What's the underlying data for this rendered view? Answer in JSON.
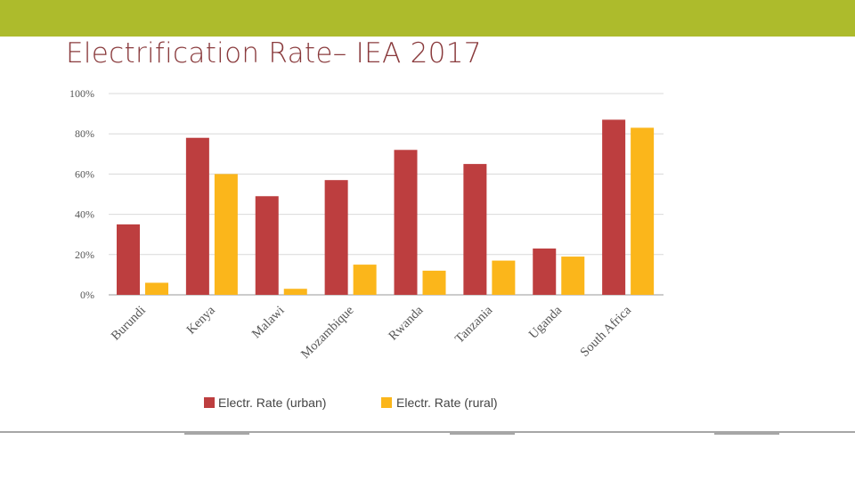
{
  "slide": {
    "title": "Electrification Rate– IEA 2017",
    "band_color": "#adbb2c",
    "title_color": "#8a3b3d"
  },
  "chart_data": {
    "type": "bar",
    "title": "",
    "xlabel": "",
    "ylabel": "",
    "categories": [
      "Burundi",
      "Kenya",
      "Malawi",
      "Mozambique",
      "Rwanda",
      "Tanzania",
      "Uganda",
      "South Africa"
    ],
    "series": [
      {
        "name": "Electr. Rate (urban)",
        "color": "#bd3e3f",
        "values": [
          35,
          78,
          49,
          57,
          72,
          65,
          23,
          87
        ]
      },
      {
        "name": "Electr. Rate (rural)",
        "color": "#fbb61b",
        "values": [
          6,
          60,
          3,
          15,
          12,
          17,
          19,
          83
        ]
      }
    ],
    "yticks": [
      "0%",
      "20%",
      "40%",
      "60%",
      "80%",
      "100%"
    ],
    "ylim": [
      0,
      100
    ],
    "grid": true,
    "legend_position": "bottom"
  }
}
